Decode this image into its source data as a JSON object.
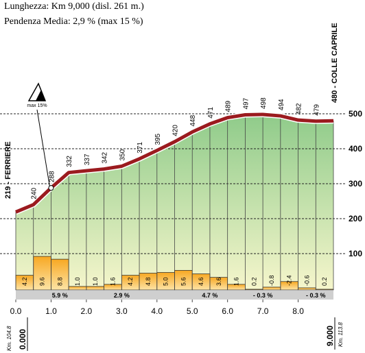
{
  "header": {
    "length": "Lunghezza: Km 9,000 (disl. 261 m.)",
    "slope": "Pendenza Media: 2,9 % (max 15 %)"
  },
  "chart_data": {
    "type": "area",
    "x": [
      0,
      0.5,
      1,
      1.5,
      2,
      2.5,
      3,
      3.5,
      4,
      4.5,
      5,
      5.5,
      6,
      6.5,
      7,
      7.5,
      8,
      8.5,
      9
    ],
    "values": [
      219,
      240,
      288,
      332,
      337,
      342,
      350,
      371,
      395,
      420,
      448,
      471,
      489,
      497,
      498,
      494,
      482,
      479,
      480
    ],
    "xlim": [
      0,
      9
    ],
    "xticks": [
      {
        "value": 0,
        "label": "0.0"
      },
      {
        "value": 1,
        "label": "1.0"
      },
      {
        "value": 2,
        "label": "2.0"
      },
      {
        "value": 3,
        "label": "3.0"
      },
      {
        "value": 4,
        "label": "4.0"
      },
      {
        "value": 5,
        "label": "5.0"
      },
      {
        "value": 6,
        "label": "6.0"
      },
      {
        "value": 7,
        "label": "7.0"
      },
      {
        "value": 8,
        "label": "8.0"
      }
    ],
    "ylim": [
      0,
      500
    ],
    "yticks": [
      100,
      200,
      300,
      400,
      500
    ],
    "start_label": "219 - FERRIERE",
    "end_label": "480 - COLLE CAPRILE",
    "start_km": "0.000",
    "start_ref": "Km. 104.8",
    "end_km": "9.000",
    "end_ref": "Km. 113.8",
    "max_grade_label": "max 15%",
    "gradients": {
      "values": [
        4.2,
        9.6,
        8.8,
        1.0,
        1.0,
        1.6,
        4.2,
        4.8,
        5.0,
        5.6,
        4.6,
        3.6,
        1.6,
        0.2,
        -0.8,
        -2.4,
        -0.6,
        0.2
      ],
      "value_labels": [
        "4.2",
        "9.6",
        "8.8",
        "1.0",
        "1.0",
        "1.6",
        "4.2",
        "4.8",
        "5.0",
        "5.6",
        "4.6",
        "3.6",
        "1.6",
        "0.2",
        "-0.8",
        "-2.4",
        "-0.6",
        "0.2"
      ]
    },
    "averages": [
      "5.9 %",
      "2.9 %",
      "4.7 %",
      "- 0.3 %",
      "- 0.3 %"
    ]
  }
}
